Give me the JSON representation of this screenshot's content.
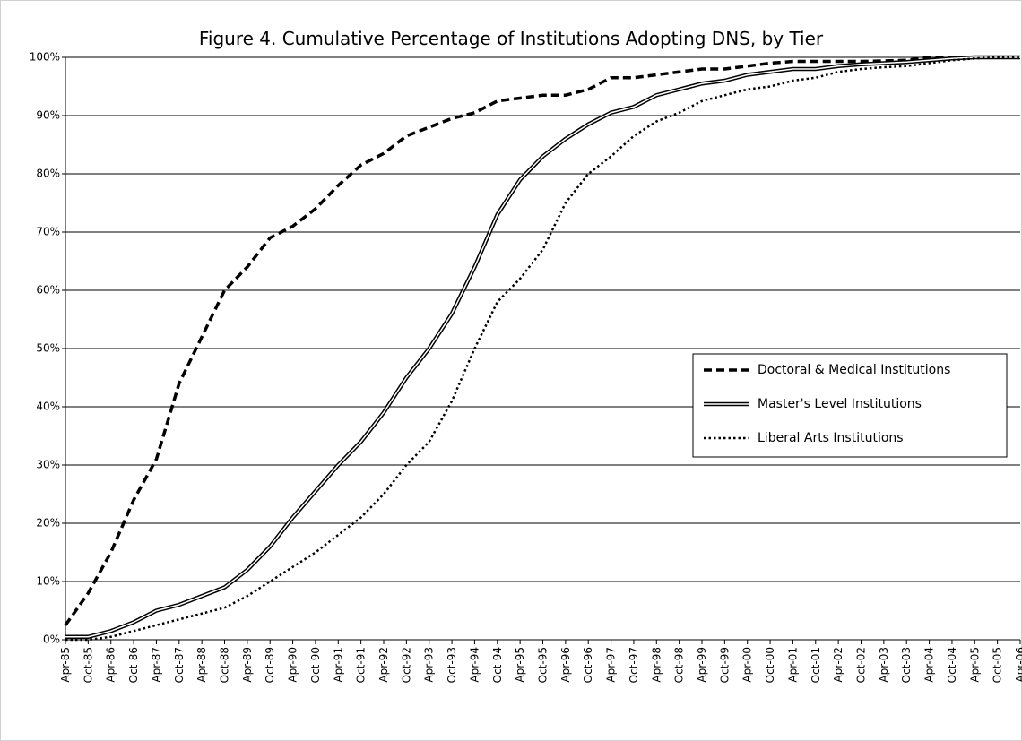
{
  "chart_data": {
    "type": "line",
    "title": "Figure 4. Cumulative Percentage of Institutions Adopting DNS,  by Tier",
    "categories": [
      "Apr-85",
      "Oct-85",
      "Apr-86",
      "Oct-86",
      "Apr-87",
      "Oct-87",
      "Apr-88",
      "Oct-88",
      "Apr-89",
      "Oct-89",
      "Apr-90",
      "Oct-90",
      "Apr-91",
      "Oct-91",
      "Apr-92",
      "Oct-92",
      "Apr-93",
      "Oct-93",
      "Apr-94",
      "Oct-94",
      "Apr-95",
      "Oct-95",
      "Apr-96",
      "Oct-96",
      "Apr-97",
      "Oct-97",
      "Apr-98",
      "Oct-98",
      "Apr-99",
      "Oct-99",
      "Apr-00",
      "Oct-00",
      "Apr-01",
      "Oct-01",
      "Apr-02",
      "Oct-02",
      "Apr-03",
      "Oct-03",
      "Apr-04",
      "Oct-04",
      "Apr-05",
      "Oct-05",
      "Apr-06"
    ],
    "series": [
      {
        "name": "Doctoral & Medical Institutions",
        "color": "#000000",
        "style": "dashed",
        "values": [
          2.5,
          8,
          15,
          24,
          31,
          44,
          52,
          60,
          64,
          69,
          71,
          74,
          78,
          81.5,
          83.5,
          86.5,
          88,
          89.5,
          90.5,
          92.5,
          93,
          93.5,
          93.5,
          94.5,
          96.5,
          96.5,
          97,
          97.5,
          98,
          98,
          98.5,
          99,
          99.3,
          99.3,
          99.3,
          99.3,
          99.4,
          99.5,
          100,
          100,
          100,
          100,
          100
        ]
      },
      {
        "name": "Master's Level Institutions",
        "color": "#000000",
        "style": "double",
        "values": [
          0.5,
          0.5,
          1.5,
          3,
          5,
          6,
          7.5,
          9,
          12,
          16,
          21,
          25.5,
          30,
          34,
          39,
          45,
          50,
          56,
          64,
          73,
          79,
          83,
          86,
          88.5,
          90.5,
          91.5,
          93.5,
          94.5,
          95.5,
          96,
          97,
          97.5,
          98,
          98,
          98.5,
          98.8,
          99,
          99.2,
          99.5,
          99.8,
          100,
          100,
          100
        ]
      },
      {
        "name": "Liberal Arts Institutions",
        "color": "#000000",
        "style": "dotted",
        "values": [
          0,
          0,
          0.5,
          1.5,
          2.5,
          3.5,
          4.5,
          5.5,
          7.5,
          10,
          12.5,
          15,
          18,
          21,
          25,
          30,
          34,
          41,
          50,
          58,
          62,
          67,
          75,
          80,
          83,
          86.5,
          89,
          90.5,
          92.5,
          93.5,
          94.5,
          95,
          96,
          96.5,
          97.5,
          98,
          98.3,
          98.5,
          99,
          99.5,
          99.8,
          100,
          100
        ]
      }
    ],
    "ylim": [
      0,
      100
    ],
    "yticks": [
      {
        "value": 0,
        "label": "0%"
      },
      {
        "value": 10,
        "label": "10%"
      },
      {
        "value": 20,
        "label": "20%"
      },
      {
        "value": 30,
        "label": "30%"
      },
      {
        "value": 40,
        "label": "40%"
      },
      {
        "value": 50,
        "label": "50%"
      },
      {
        "value": 60,
        "label": "60%"
      },
      {
        "value": 70,
        "label": "70%"
      },
      {
        "value": 80,
        "label": "80%"
      },
      {
        "value": 90,
        "label": "90%"
      },
      {
        "value": 100,
        "label": "100%"
      }
    ],
    "grid": true,
    "legend": "right"
  }
}
